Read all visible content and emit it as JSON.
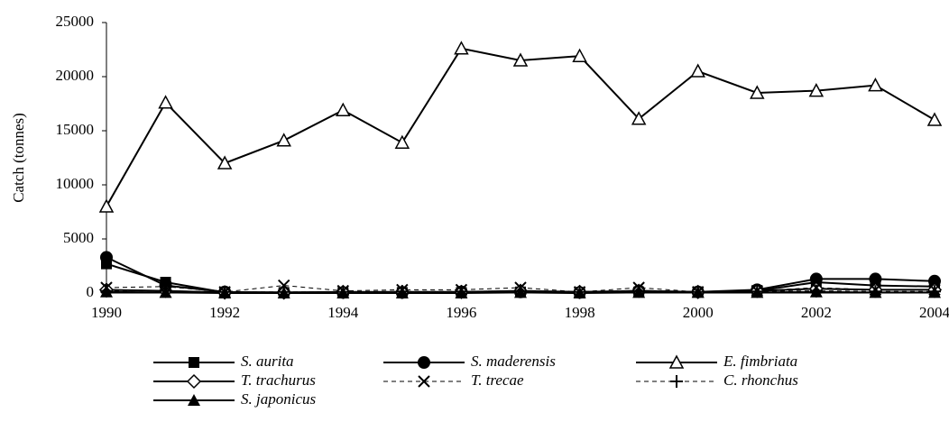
{
  "chart_data": {
    "type": "line",
    "y_label": "Catch (tonnes)",
    "x": [
      1990,
      1991,
      1992,
      1993,
      1994,
      1995,
      1996,
      1997,
      1998,
      1999,
      2000,
      2001,
      2002,
      2003,
      2004
    ],
    "xlim": [
      1990,
      2004
    ],
    "xticks": [
      1990,
      1992,
      1994,
      1996,
      1998,
      2000,
      2002,
      2004
    ],
    "ylim": [
      0,
      25000
    ],
    "yticks": [
      0,
      5000,
      10000,
      15000,
      20000,
      25000
    ],
    "grid": false,
    "series": [
      {
        "name": "S. aurita",
        "color": "#000000",
        "marker": "square",
        "dashed": false,
        "values": [
          2700,
          1000,
          50,
          50,
          50,
          50,
          50,
          100,
          50,
          100,
          100,
          200,
          1000,
          700,
          600
        ]
      },
      {
        "name": "S. maderensis",
        "color": "#000000",
        "marker": "circle",
        "dashed": false,
        "values": [
          3300,
          700,
          100,
          50,
          50,
          50,
          100,
          100,
          50,
          200,
          100,
          300,
          1300,
          1300,
          1100
        ]
      },
      {
        "name": "E. fimbriata",
        "color": "#000000",
        "marker": "open-triangle",
        "dashed": false,
        "values": [
          8000,
          17600,
          12000,
          14100,
          16900,
          13900,
          22600,
          21500,
          21900,
          16100,
          20500,
          18500,
          18700,
          19200,
          16000
        ]
      },
      {
        "name": "T. trachurus",
        "color": "#000000",
        "marker": "open-diamond",
        "dashed": false,
        "values": [
          300,
          200,
          50,
          50,
          100,
          100,
          100,
          200,
          100,
          200,
          100,
          200,
          400,
          300,
          300
        ]
      },
      {
        "name": "T. trecae",
        "color": "#000000",
        "marker": "x",
        "dashed": true,
        "values": [
          500,
          600,
          100,
          700,
          200,
          300,
          300,
          500,
          100,
          500,
          100,
          200,
          500,
          300,
          300
        ]
      },
      {
        "name": "C. rhonchus",
        "color": "#000000",
        "marker": "plus",
        "dashed": true,
        "values": [
          200,
          200,
          100,
          100,
          100,
          150,
          150,
          200,
          100,
          200,
          100,
          150,
          200,
          150,
          150
        ]
      },
      {
        "name": "S. japonicus",
        "color": "#000000",
        "marker": "triangle",
        "dashed": false,
        "values": [
          100,
          50,
          0,
          0,
          0,
          0,
          0,
          50,
          0,
          50,
          50,
          50,
          100,
          50,
          50
        ]
      }
    ],
    "legend_position": "bottom"
  }
}
